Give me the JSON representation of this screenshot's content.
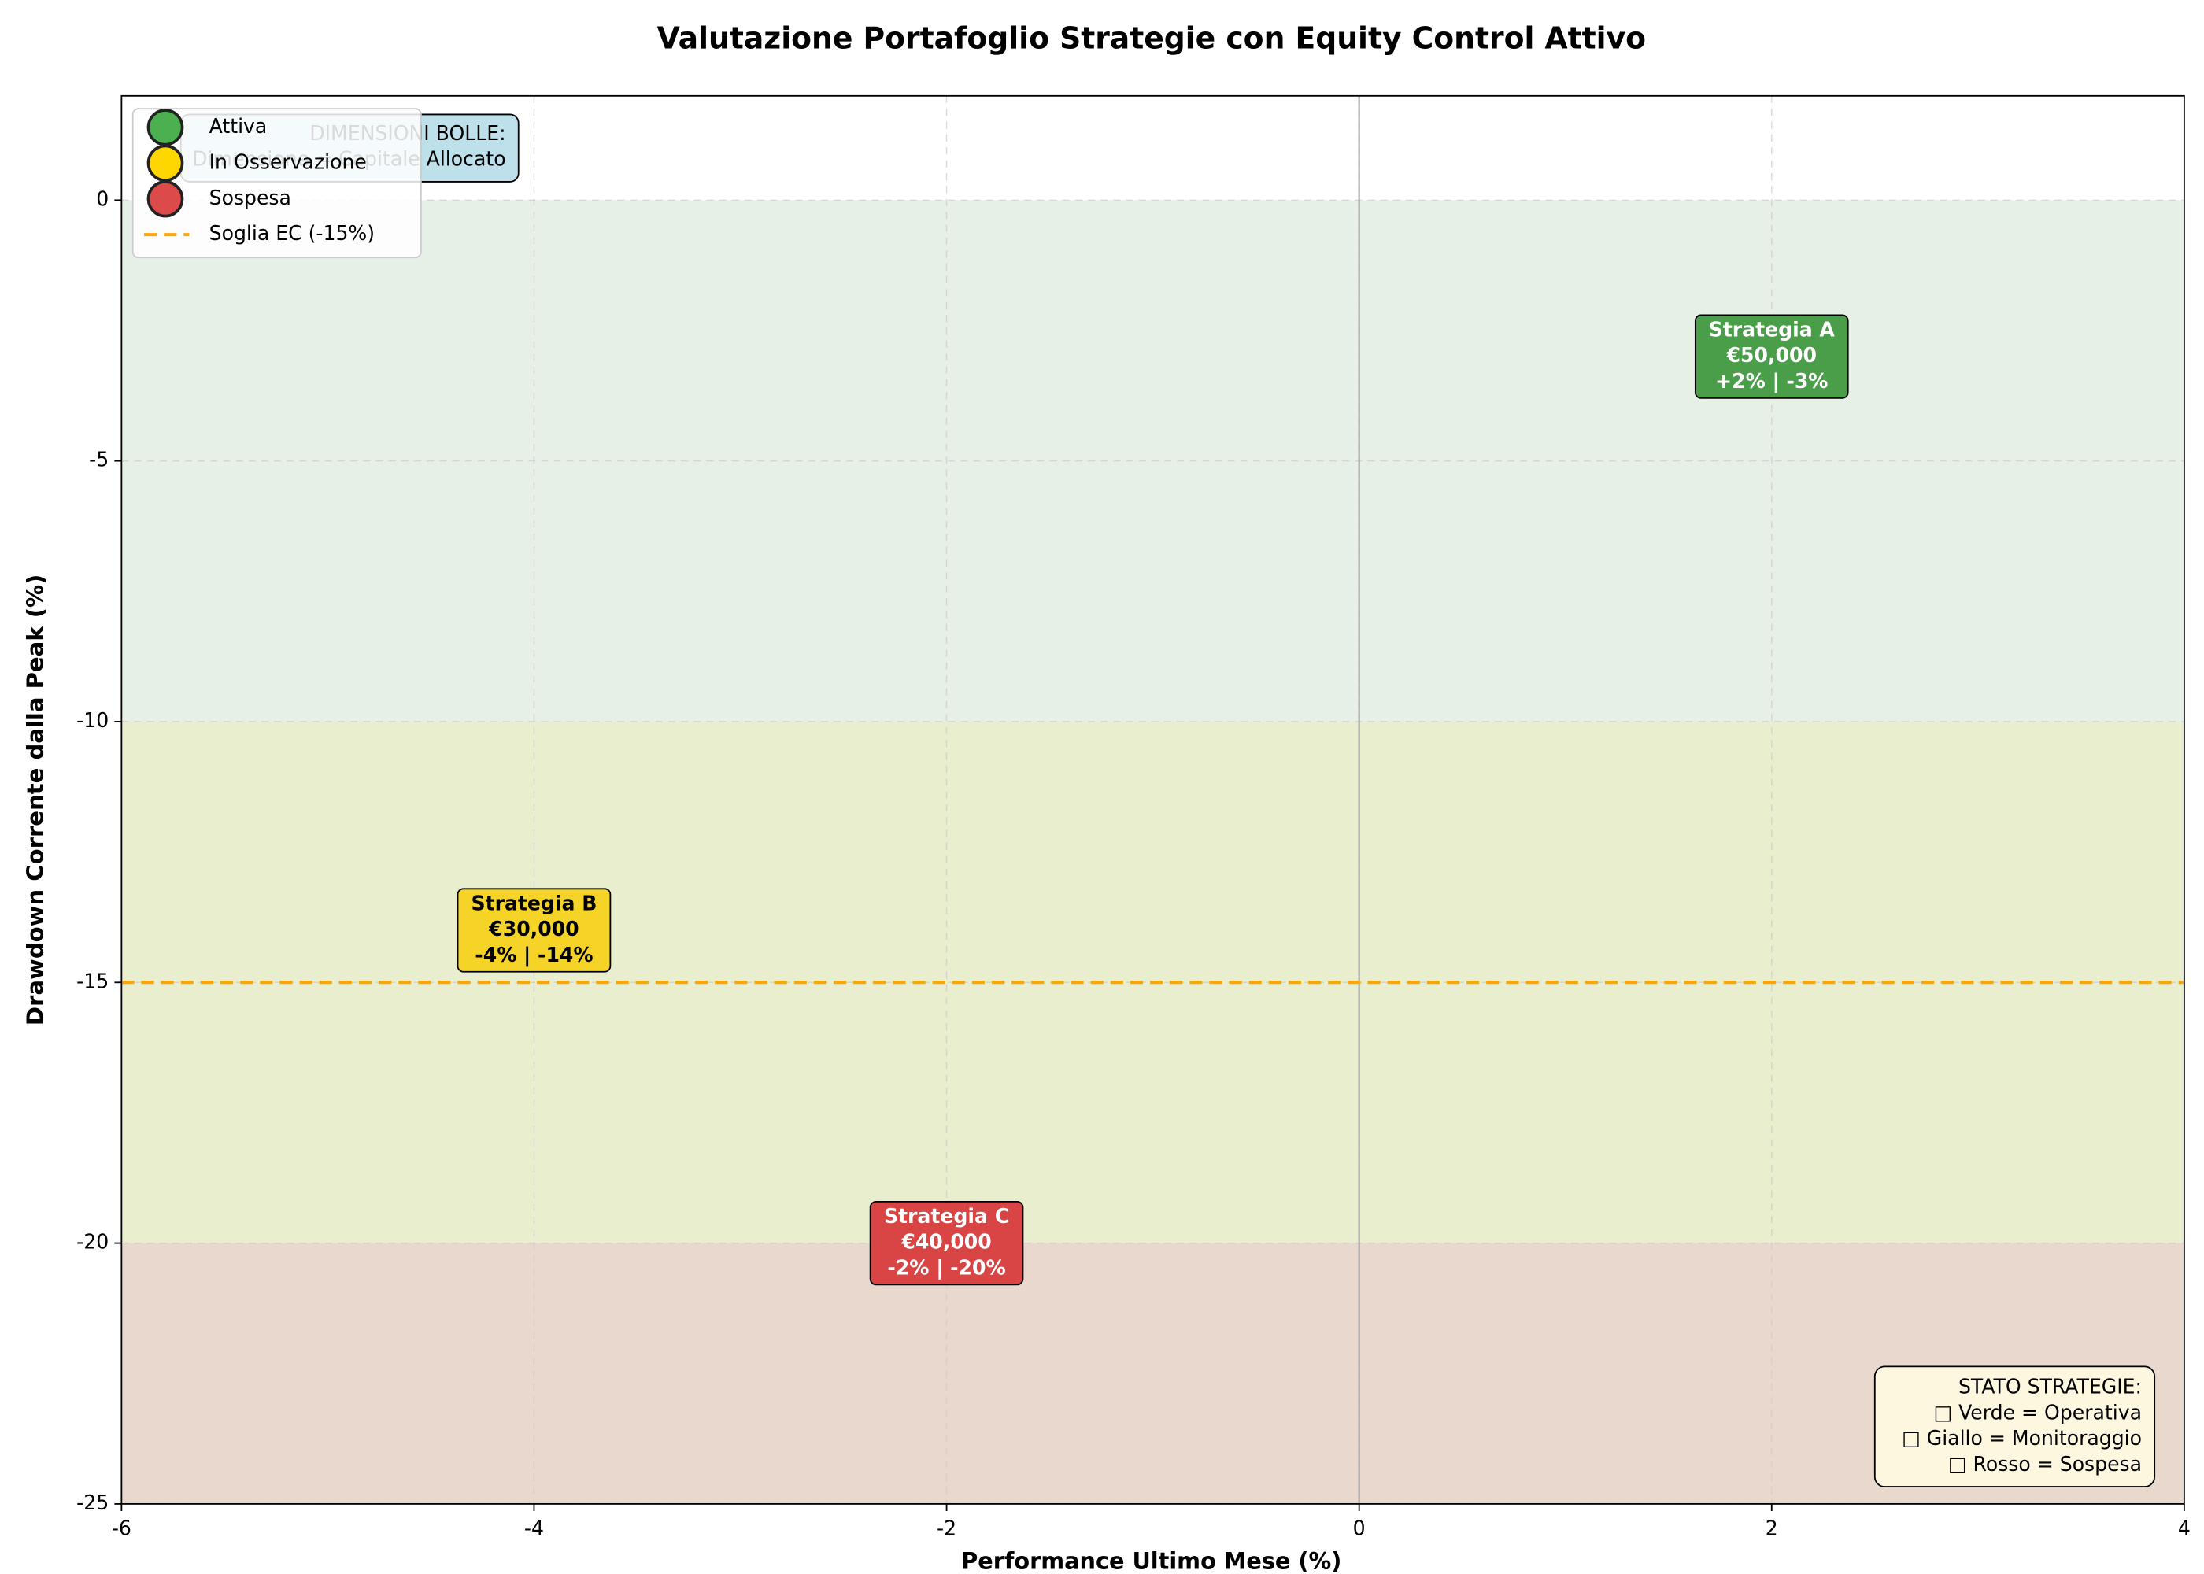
{
  "chart_data": {
    "type": "scatter",
    "title": "Valutazione Portafoglio Strategie con Equity Control Attivo",
    "xlabel": "Performance Ultimo Mese (%)",
    "ylabel": "Drawdown Corrente dalla Peak (%)",
    "xlim": [
      -6,
      4
    ],
    "ylim": [
      -25,
      2
    ],
    "xticks": [
      -6,
      -4,
      -2,
      0,
      2,
      4
    ],
    "yticks": [
      -25,
      -20,
      -15,
      -10,
      -5,
      0
    ],
    "grid": true,
    "legend": "upper left",
    "zones": [
      {
        "from": 0,
        "to": -10,
        "color": "#e6f0e6"
      },
      {
        "from": -10,
        "to": -20,
        "color": "#e9eece"
      },
      {
        "from": -20,
        "to": -25,
        "color": "#e9d8ce"
      }
    ],
    "threshold": {
      "name": "Soglia EC (-15%)",
      "value": -15,
      "color": "#ffa500"
    },
    "series": [
      {
        "name": "Attiva",
        "color": "#4caf50",
        "box_color": "#4a9e4a",
        "text_color": "#ffffff",
        "x": [
          2
        ],
        "values": [
          -3
        ],
        "sizes": [
          50000
        ],
        "labels": [
          [
            "Strategia A",
            "€50,000",
            "+2% | -3%"
          ]
        ]
      },
      {
        "name": "In Osservazione",
        "color": "#ffd700",
        "box_color": "#f5d327",
        "text_color": "#000000",
        "x": [
          -4
        ],
        "values": [
          -14
        ],
        "sizes": [
          30000
        ],
        "labels": [
          [
            "Strategia B",
            "€30,000",
            "-4% | -14%"
          ]
        ]
      },
      {
        "name": "Sospesa",
        "color": "#dc4a4a",
        "box_color": "#d94545",
        "text_color": "#ffffff",
        "x": [
          -2
        ],
        "values": [
          -20
        ],
        "sizes": [
          40000
        ],
        "labels": [
          [
            "Strategia C",
            "€40,000",
            "-2% | -20%"
          ]
        ]
      }
    ],
    "info_box": [
      "DIMENSIONI BOLLE:",
      "Dimensione = Capitale Allocato"
    ],
    "status_box": [
      "STATO STRATEGIE:",
      "□ Verde = Operativa",
      "□ Giallo = Monitoraggio",
      "□ Rosso = Sospesa"
    ]
  }
}
